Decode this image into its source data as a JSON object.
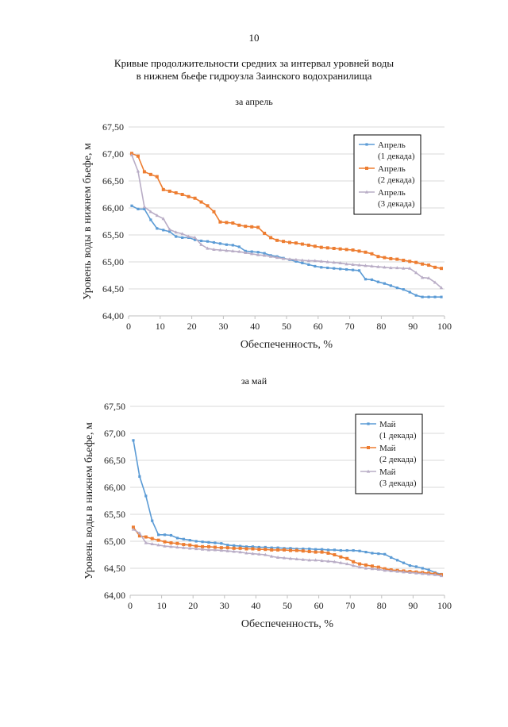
{
  "page_number": "10",
  "title_line1": "Кривые продолжительности средних за интервал уровней воды",
  "title_line2": "в нижнем бьефе гидроузла Заинского водохранилища",
  "colors": {
    "series1": "#5b9bd5",
    "series2": "#ed7d31",
    "series3": "#b9adc6"
  },
  "chart_data": [
    {
      "type": "line",
      "subtitle": "за апрель",
      "xlabel": "Обеспеченность, %",
      "ylabel": "Уровень воды в нижнем бьефе, м",
      "xlim": [
        0,
        100
      ],
      "ylim": [
        64.0,
        67.5
      ],
      "x_ticks": [
        "0",
        "10",
        "20",
        "30",
        "40",
        "50",
        "60",
        "70",
        "80",
        "90",
        "100"
      ],
      "y_ticks": [
        "64,00",
        "64,50",
        "65,00",
        "65,50",
        "66,00",
        "66,50",
        "67,00",
        "67,50"
      ],
      "grid": true,
      "legend_position": "top-right",
      "series": [
        {
          "name": "Апрель",
          "name2": "(1 декада)",
          "x": [
            1,
            3,
            5,
            7,
            9,
            11,
            13,
            15,
            17,
            19,
            21,
            23,
            25,
            27,
            29,
            31,
            33,
            35,
            37,
            39,
            41,
            43,
            45,
            47,
            49,
            51,
            53,
            55,
            57,
            59,
            61,
            63,
            65,
            67,
            69,
            71,
            73,
            75,
            77,
            79,
            81,
            83,
            85,
            87,
            89,
            91,
            93,
            95,
            97,
            99
          ],
          "y": [
            66.04,
            65.98,
            65.98,
            65.78,
            65.62,
            65.59,
            65.56,
            65.47,
            65.45,
            65.45,
            65.41,
            65.39,
            65.38,
            65.36,
            65.34,
            65.32,
            65.31,
            65.28,
            65.2,
            65.19,
            65.18,
            65.16,
            65.12,
            65.1,
            65.07,
            65.04,
            65.01,
            64.98,
            64.95,
            64.92,
            64.9,
            64.89,
            64.88,
            64.87,
            64.86,
            64.85,
            64.84,
            64.68,
            64.67,
            64.63,
            64.6,
            64.56,
            64.52,
            64.49,
            64.44,
            64.38,
            64.35,
            64.35,
            64.35,
            64.35
          ]
        },
        {
          "name": "Апрель",
          "name2": "(2 декада)",
          "x": [
            1,
            3,
            5,
            7,
            9,
            11,
            13,
            15,
            17,
            19,
            21,
            23,
            25,
            27,
            29,
            31,
            33,
            35,
            37,
            39,
            41,
            43,
            45,
            47,
            49,
            51,
            53,
            55,
            57,
            59,
            61,
            63,
            65,
            67,
            69,
            71,
            73,
            75,
            77,
            79,
            81,
            83,
            85,
            87,
            89,
            91,
            93,
            95,
            97,
            99
          ],
          "y": [
            67.01,
            66.96,
            66.67,
            66.62,
            66.58,
            66.34,
            66.31,
            66.28,
            66.25,
            66.21,
            66.18,
            66.11,
            66.04,
            65.93,
            65.74,
            65.73,
            65.72,
            65.68,
            65.66,
            65.65,
            65.64,
            65.53,
            65.45,
            65.4,
            65.38,
            65.36,
            65.35,
            65.33,
            65.31,
            65.29,
            65.27,
            65.26,
            65.25,
            65.24,
            65.23,
            65.22,
            65.2,
            65.18,
            65.15,
            65.1,
            65.08,
            65.06,
            65.05,
            65.03,
            65.01,
            64.99,
            64.96,
            64.94,
            64.9,
            64.88
          ]
        },
        {
          "name": "Апрель",
          "name2": "(3 декада)",
          "x": [
            1,
            3,
            5,
            7,
            9,
            11,
            13,
            15,
            17,
            19,
            21,
            23,
            25,
            27,
            29,
            31,
            33,
            35,
            37,
            39,
            41,
            43,
            45,
            47,
            49,
            51,
            53,
            55,
            57,
            59,
            61,
            63,
            65,
            67,
            69,
            71,
            73,
            75,
            77,
            79,
            81,
            83,
            85,
            87,
            89,
            91,
            93,
            95,
            97,
            99
          ],
          "y": [
            66.98,
            66.68,
            66.02,
            65.93,
            65.86,
            65.8,
            65.6,
            65.55,
            65.52,
            65.47,
            65.45,
            65.32,
            65.25,
            65.23,
            65.22,
            65.21,
            65.2,
            65.19,
            65.17,
            65.15,
            65.13,
            65.12,
            65.1,
            65.08,
            65.06,
            65.05,
            65.04,
            65.03,
            65.02,
            65.02,
            65.01,
            65.0,
            64.99,
            64.98,
            64.96,
            64.95,
            64.94,
            64.93,
            64.92,
            64.91,
            64.9,
            64.89,
            64.89,
            64.88,
            64.88,
            64.8,
            64.71,
            64.7,
            64.62,
            64.52
          ]
        }
      ]
    },
    {
      "type": "line",
      "subtitle": "за май",
      "xlabel": "Обеспеченность, %",
      "ylabel": "Уровень воды в нижнем бьефе, м",
      "xlim": [
        0,
        100
      ],
      "ylim": [
        64.0,
        67.5
      ],
      "x_ticks": [
        "0",
        "10",
        "20",
        "30",
        "40",
        "50",
        "60",
        "70",
        "80",
        "90",
        "100"
      ],
      "y_ticks": [
        "64,00",
        "64,50",
        "65,00",
        "65,50",
        "66,00",
        "66,50",
        "67,00",
        "67,50"
      ],
      "grid": true,
      "legend_position": "top-right",
      "series": [
        {
          "name": "Май",
          "name2": "(1 декада)",
          "x": [
            1,
            3,
            5,
            7,
            9,
            11,
            13,
            15,
            17,
            19,
            21,
            23,
            25,
            27,
            29,
            31,
            33,
            35,
            37,
            39,
            41,
            43,
            45,
            47,
            49,
            51,
            53,
            55,
            57,
            59,
            61,
            63,
            65,
            67,
            69,
            71,
            73,
            75,
            77,
            79,
            81,
            83,
            85,
            87,
            89,
            91,
            93,
            95,
            97,
            99
          ],
          "y": [
            66.87,
            66.2,
            65.84,
            65.38,
            65.12,
            65.12,
            65.11,
            65.06,
            65.04,
            65.02,
            65.0,
            64.99,
            64.98,
            64.97,
            64.96,
            64.93,
            64.92,
            64.91,
            64.9,
            64.9,
            64.89,
            64.89,
            64.88,
            64.88,
            64.87,
            64.87,
            64.86,
            64.86,
            64.86,
            64.85,
            64.85,
            64.84,
            64.84,
            64.83,
            64.83,
            64.83,
            64.82,
            64.8,
            64.78,
            64.77,
            64.76,
            64.7,
            64.65,
            64.6,
            64.55,
            64.53,
            64.5,
            64.47,
            64.42,
            64.39
          ]
        },
        {
          "name": "Май",
          "name2": "(2 декада)",
          "x": [
            1,
            3,
            5,
            7,
            9,
            11,
            13,
            15,
            17,
            19,
            21,
            23,
            25,
            27,
            29,
            31,
            33,
            35,
            37,
            39,
            41,
            43,
            45,
            47,
            49,
            51,
            53,
            55,
            57,
            59,
            61,
            63,
            65,
            67,
            69,
            71,
            73,
            75,
            77,
            79,
            81,
            83,
            85,
            87,
            89,
            91,
            93,
            95,
            97,
            99
          ],
          "y": [
            65.26,
            65.1,
            65.08,
            65.05,
            65.02,
            64.99,
            64.97,
            64.96,
            64.94,
            64.93,
            64.91,
            64.9,
            64.9,
            64.89,
            64.88,
            64.88,
            64.87,
            64.87,
            64.86,
            64.86,
            64.85,
            64.85,
            64.84,
            64.84,
            64.84,
            64.83,
            64.83,
            64.82,
            64.81,
            64.8,
            64.8,
            64.78,
            64.75,
            64.71,
            64.68,
            64.62,
            64.58,
            64.56,
            64.54,
            64.52,
            64.49,
            64.47,
            64.46,
            64.45,
            64.44,
            64.43,
            64.42,
            64.41,
            64.4,
            64.38
          ]
        },
        {
          "name": "Май",
          "name2": "(3 декада)",
          "x": [
            1,
            3,
            5,
            7,
            9,
            11,
            13,
            15,
            17,
            19,
            21,
            23,
            25,
            27,
            29,
            31,
            33,
            35,
            37,
            39,
            41,
            43,
            45,
            47,
            49,
            51,
            53,
            55,
            57,
            59,
            61,
            63,
            65,
            67,
            69,
            71,
            73,
            75,
            77,
            79,
            81,
            83,
            85,
            87,
            89,
            91,
            93,
            95,
            97,
            99
          ],
          "y": [
            65.22,
            65.15,
            64.97,
            64.95,
            64.93,
            64.91,
            64.9,
            64.89,
            64.88,
            64.87,
            64.86,
            64.85,
            64.84,
            64.84,
            64.83,
            64.82,
            64.81,
            64.8,
            64.78,
            64.77,
            64.76,
            64.75,
            64.72,
            64.7,
            64.69,
            64.68,
            64.67,
            64.66,
            64.65,
            64.65,
            64.64,
            64.63,
            64.62,
            64.6,
            64.58,
            64.55,
            64.52,
            64.5,
            64.49,
            64.48,
            64.46,
            64.45,
            64.44,
            64.43,
            64.42,
            64.41,
            64.4,
            64.39,
            64.38,
            64.36
          ]
        }
      ]
    }
  ]
}
